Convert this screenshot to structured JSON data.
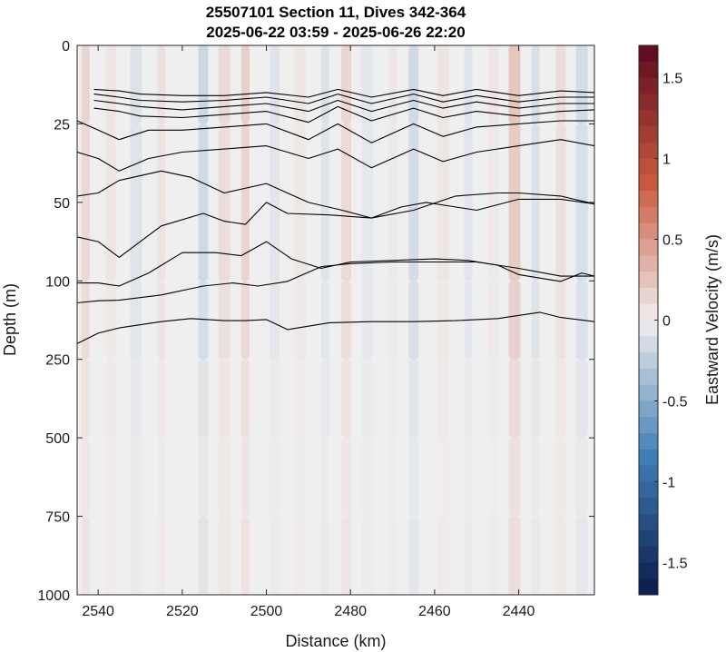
{
  "chart_data": {
    "type": "heatmap",
    "title_lines": [
      "25507101 Section 11, Dives 342-364",
      "2025-06-22 03:59 - 2025-06-26 22:20"
    ],
    "xlabel": "Distance (km)",
    "ylabel": "Depth (m)",
    "colorbar_label": "Eastward Velocity (m/s)",
    "x_reversed": true,
    "xlim": [
      2545,
      2422
    ],
    "x_ticks": [
      2540,
      2520,
      2500,
      2480,
      2460,
      2440
    ],
    "x_tick_labels": [
      "2540",
      "2520",
      "2500",
      "2480",
      "2460",
      "2440"
    ],
    "y_ticks": [
      0,
      25,
      50,
      100,
      250,
      500,
      750,
      1000
    ],
    "y_tick_labels": [
      "0",
      "25",
      "50",
      "100",
      "250",
      "500",
      "750",
      "1000"
    ],
    "colorbar_range": [
      -1.7,
      1.7
    ],
    "colorbar_ticks": [
      1.5,
      1,
      0.5,
      0,
      -0.5,
      -1,
      -1.5
    ],
    "colorbar_tick_labels": [
      "1.5",
      "1",
      "0.5",
      "0",
      "-0.5",
      "-1",
      "-1.5"
    ],
    "colors": {
      "positive_max": "#5b0a1e",
      "positive_mid": "#c9593e",
      "neutral": "#f0efef",
      "negative_mid": "#3f7db5",
      "negative_max": "#0b1a4a",
      "contour": "#000000"
    },
    "velocity_columns": [
      {
        "x": 2543,
        "velocity": 0.15
      },
      {
        "x": 2537,
        "velocity": 0.06
      },
      {
        "x": 2531,
        "velocity": -0.1
      },
      {
        "x": 2525,
        "velocity": 0.08
      },
      {
        "x": 2515,
        "velocity": -0.18
      },
      {
        "x": 2510,
        "velocity": 0.12
      },
      {
        "x": 2505,
        "velocity": 0.18
      },
      {
        "x": 2498,
        "velocity": -0.08
      },
      {
        "x": 2492,
        "velocity": 0.05
      },
      {
        "x": 2486,
        "velocity": -0.1
      },
      {
        "x": 2481,
        "velocity": 0.14
      },
      {
        "x": 2476,
        "velocity": -0.06
      },
      {
        "x": 2470,
        "velocity": 0.05
      },
      {
        "x": 2465,
        "velocity": -0.16
      },
      {
        "x": 2458,
        "velocity": 0.06
      },
      {
        "x": 2452,
        "velocity": -0.08
      },
      {
        "x": 2446,
        "velocity": 0.05
      },
      {
        "x": 2441,
        "velocity": 0.24
      },
      {
        "x": 2436,
        "velocity": -0.12
      },
      {
        "x": 2430,
        "velocity": 0.1
      },
      {
        "x": 2425,
        "velocity": -0.14
      }
    ],
    "contours": [
      {
        "x": [
          2541,
          2535,
          2530,
          2520,
          2510,
          2500,
          2490,
          2483,
          2475,
          2465,
          2458,
          2450,
          2440,
          2430,
          2422
        ],
        "depth": [
          14,
          14.5,
          15.5,
          16,
          16,
          15,
          16.5,
          14,
          16.5,
          14,
          16,
          14,
          16,
          14.5,
          15
        ]
      },
      {
        "x": [
          2541,
          2535,
          2530,
          2520,
          2510,
          2500,
          2490,
          2483,
          2475,
          2465,
          2458,
          2450,
          2440,
          2430,
          2422
        ],
        "depth": [
          15.5,
          16.5,
          17.5,
          18,
          17.5,
          16.5,
          18.5,
          15.5,
          18.5,
          15.5,
          18,
          16,
          18,
          16.5,
          16.5
        ]
      },
      {
        "x": [
          2541,
          2535,
          2530,
          2520,
          2510,
          2500,
          2490,
          2483,
          2475,
          2465,
          2458,
          2450,
          2440,
          2430,
          2422
        ],
        "depth": [
          17.5,
          18.5,
          19.5,
          20.5,
          19.5,
          18.5,
          21,
          17.5,
          21,
          17.5,
          20,
          18,
          20,
          18.5,
          18.5
        ]
      },
      {
        "x": [
          2541,
          2535,
          2530,
          2520,
          2510,
          2500,
          2490,
          2483,
          2475,
          2465,
          2458,
          2450,
          2440,
          2430,
          2422
        ],
        "depth": [
          20,
          21,
          22.5,
          23,
          22,
          21,
          24.5,
          19.5,
          24,
          20,
          23,
          21,
          22.5,
          21,
          20.5
        ]
      },
      {
        "x": [
          2545,
          2540,
          2535,
          2528,
          2520,
          2510,
          2500,
          2490,
          2483,
          2475,
          2465,
          2458,
          2450,
          2440,
          2430,
          2422
        ],
        "depth": [
          24,
          27,
          30,
          27,
          27,
          26,
          25,
          30,
          25,
          31,
          25,
          29,
          26,
          25,
          24,
          24
        ]
      },
      {
        "x": [
          2545,
          2540,
          2535,
          2528,
          2520,
          2510,
          2500,
          2490,
          2483,
          2475,
          2465,
          2458,
          2450,
          2440,
          2430,
          2422
        ],
        "depth": [
          34,
          36,
          40,
          36,
          34,
          33,
          32,
          36,
          33,
          39,
          33,
          37,
          34,
          32,
          30,
          32
        ]
      },
      {
        "x": [
          2545,
          2540,
          2535,
          2525,
          2518,
          2510,
          2500,
          2490,
          2482,
          2475,
          2468,
          2462,
          2450,
          2440,
          2430,
          2422
        ],
        "depth": [
          48,
          47,
          43,
          40,
          42,
          47,
          44,
          50,
          55,
          60,
          53,
          50,
          55,
          49,
          49,
          51
        ]
      },
      {
        "x": [
          2545,
          2540,
          2535,
          2525,
          2515,
          2510,
          2505,
          2500,
          2495,
          2485,
          2475,
          2465,
          2455,
          2445,
          2440,
          2430,
          2422
        ],
        "depth": [
          72,
          75,
          85,
          65,
          57,
          62,
          64,
          50,
          57,
          58,
          60,
          55,
          48,
          47,
          47,
          48,
          51
        ]
      },
      {
        "x": [
          2545,
          2540,
          2535,
          2528,
          2520,
          2512,
          2506,
          2500,
          2494,
          2487,
          2480,
          2470,
          2460,
          2452,
          2445,
          2440,
          2430,
          2425,
          2422
        ],
        "depth": [
          104,
          104,
          110,
          95,
          82,
          82,
          84,
          75,
          86,
          92,
          88,
          87,
          86,
          87,
          90,
          96,
          101,
          95,
          97
        ]
      },
      {
        "x": [
          2545,
          2540,
          2535,
          2525,
          2515,
          2508,
          2502,
          2495,
          2487,
          2480,
          2470,
          2462,
          2450,
          2440,
          2430,
          2422
        ],
        "depth": [
          142,
          138,
          137,
          127,
          110,
          104,
          110,
          101,
          91,
          89,
          88,
          88,
          88,
          92,
          97,
          97
        ]
      },
      {
        "x": [
          2545,
          2540,
          2535,
          2525,
          2518,
          2510,
          2505,
          2500,
          2495,
          2485,
          2475,
          2465,
          2455,
          2445,
          2435,
          2430,
          2422
        ],
        "depth": [
          220,
          200,
          190,
          178,
          172,
          176,
          176,
          174,
          193,
          180,
          178,
          178,
          176,
          172,
          160,
          170,
          178
        ]
      }
    ]
  }
}
